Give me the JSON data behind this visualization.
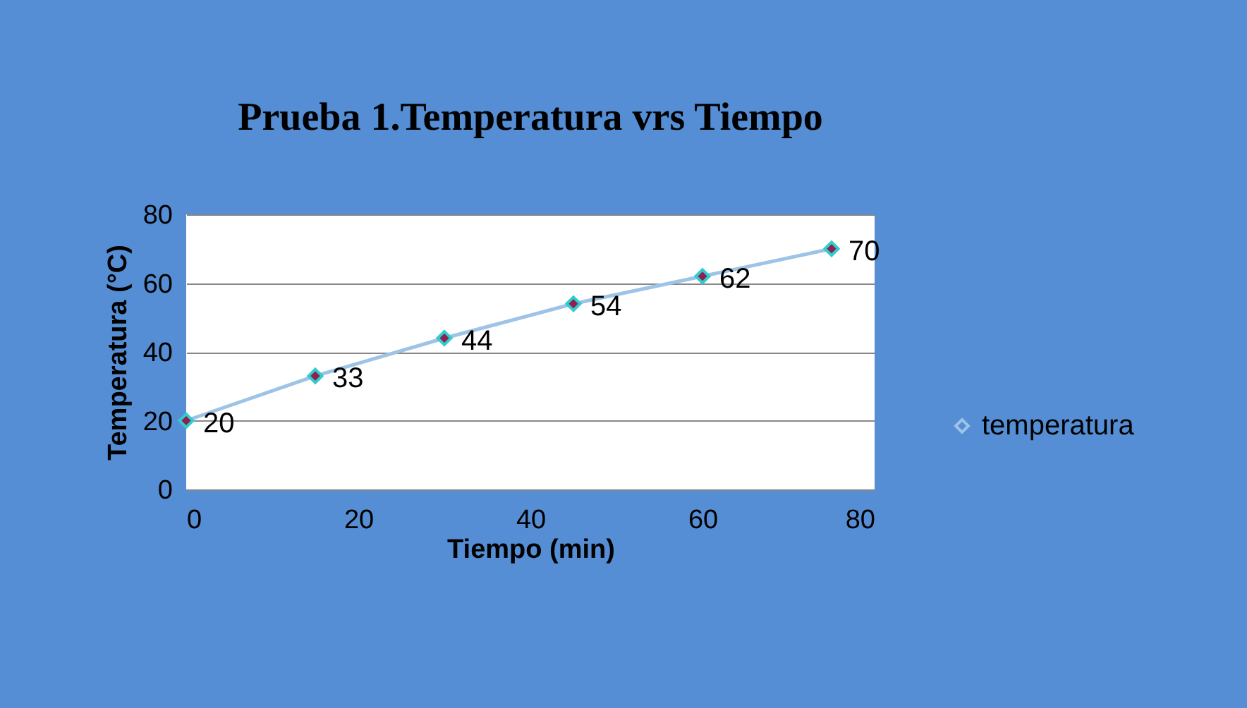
{
  "chart_data": {
    "type": "line",
    "title": "Prueba 1.Temperatura vrs Tiempo",
    "xlabel": "Tiempo (min)",
    "ylabel": "Temperatura (°C)",
    "x": [
      0,
      15,
      30,
      45,
      60,
      75
    ],
    "series": [
      {
        "name": "temperatura",
        "color": "#9dc3e6",
        "values": [
          20,
          33,
          44,
          54,
          62,
          70
        ]
      }
    ],
    "xlim": [
      0,
      80
    ],
    "xticks": [
      0,
      20,
      40,
      60,
      80
    ],
    "ylim": [
      0,
      80
    ],
    "yticks": [
      0,
      20,
      40,
      60,
      80
    ],
    "grid": "y",
    "legend": "right",
    "marker": "diamond",
    "data_labels": true
  }
}
